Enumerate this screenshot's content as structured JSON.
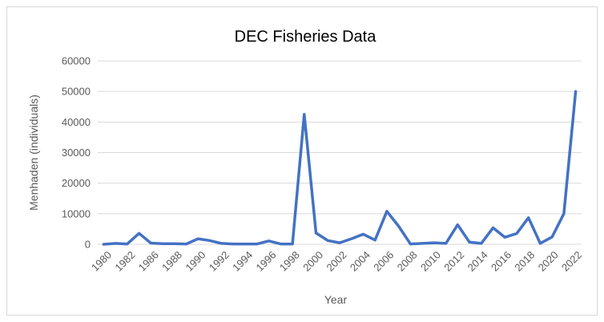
{
  "chart_data": {
    "type": "line",
    "title": "DEC Fisheries Data",
    "xlabel": "Year",
    "ylabel": "Menhaden (individuals)",
    "ylim": [
      0,
      60000
    ],
    "yticks": [
      0,
      10000,
      20000,
      30000,
      40000,
      50000,
      60000
    ],
    "xtick_labels": [
      "1980",
      "1982",
      "1986",
      "1988",
      "1990",
      "1992",
      "1994",
      "1996",
      "1998",
      "2000",
      "2002",
      "2004",
      "2006",
      "2008",
      "2010",
      "2012",
      "2014",
      "2016",
      "2018",
      "2020",
      "2022"
    ],
    "grid": true,
    "line_color": "#4472c4",
    "x": [
      "1980",
      "1981",
      "1982",
      "1983",
      "1986",
      "1987",
      "1988",
      "1989",
      "1990",
      "1991",
      "1992",
      "1993",
      "1994",
      "1995",
      "1996",
      "1997",
      "1998",
      "1999",
      "2000",
      "2001",
      "2002",
      "2003",
      "2004",
      "2005",
      "2006",
      "2007",
      "2008",
      "2009",
      "2010",
      "2011",
      "2012",
      "2013",
      "2014",
      "2015",
      "2016",
      "2017",
      "2018",
      "2019",
      "2020",
      "2021",
      "2022"
    ],
    "values": [
      0,
      300,
      100,
      3600,
      400,
      200,
      200,
      100,
      1800,
      1200,
      300,
      100,
      100,
      100,
      1100,
      100,
      100,
      42500,
      3700,
      1200,
      500,
      1800,
      3300,
      1400,
      10800,
      5900,
      100,
      300,
      500,
      300,
      6400,
      700,
      300,
      5400,
      2300,
      3500,
      8700,
      300,
      2400,
      10000,
      50000
    ]
  }
}
